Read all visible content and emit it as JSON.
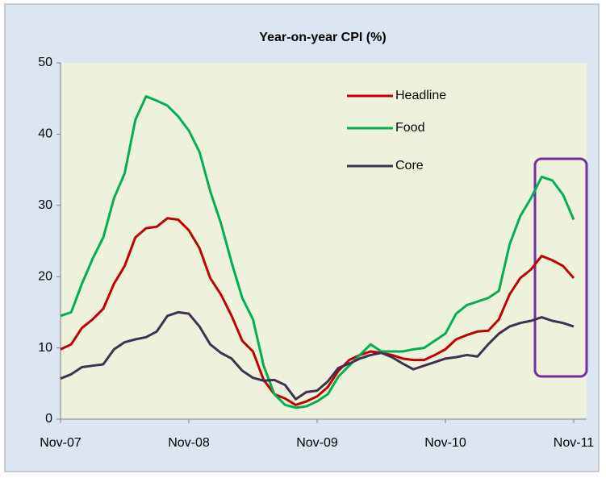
{
  "chart_data": {
    "type": "line",
    "title": "Year-on-year CPI (%)",
    "categories": [
      "Nov-07",
      null,
      null,
      null,
      null,
      null,
      null,
      null,
      null,
      null,
      null,
      null,
      "Nov-08",
      null,
      null,
      null,
      null,
      null,
      null,
      null,
      null,
      null,
      null,
      null,
      "Nov-09",
      null,
      null,
      null,
      null,
      null,
      null,
      null,
      null,
      null,
      null,
      null,
      "Nov-10",
      null,
      null,
      null,
      null,
      null,
      null,
      null,
      null,
      null,
      null,
      null,
      "Nov-11"
    ],
    "series": [
      {
        "name": "Headline",
        "color": "#c00000",
        "values": [
          9.8,
          10.5,
          12.8,
          14,
          15.5,
          19,
          21.5,
          25.5,
          26.8,
          27,
          28.2,
          28,
          26.5,
          24,
          19.8,
          17.5,
          14.5,
          11,
          9.5,
          5.5,
          3.5,
          2.9,
          2,
          2.5,
          3.2,
          4.5,
          6.8,
          8.3,
          9,
          9.5,
          9.3,
          9,
          8.5,
          8.3,
          8.3,
          9,
          9.8,
          11.2,
          11.8,
          12.3,
          12.4,
          14,
          17.5,
          19.8,
          21,
          22.9,
          22.3,
          21.5,
          19.8
        ]
      },
      {
        "name": "Food",
        "color": "#00b050",
        "values": [
          14.5,
          15,
          19,
          22.5,
          25.5,
          31,
          34.5,
          42,
          45.3,
          44.7,
          44,
          42.5,
          40.5,
          37.5,
          32,
          27.5,
          22,
          17,
          14,
          7.5,
          3.5,
          2,
          1.6,
          1.8,
          2.5,
          3.5,
          6,
          7.5,
          9,
          10.5,
          9.5,
          9.5,
          9.5,
          9.8,
          10,
          11,
          12,
          14.8,
          16,
          16.5,
          17,
          18,
          24.5,
          28.5,
          31,
          34,
          33.5,
          31.5,
          28
        ]
      },
      {
        "name": "Core",
        "color": "#403152",
        "values": [
          5.7,
          6.3,
          7.3,
          7.5,
          7.7,
          9.8,
          10.8,
          11.2,
          11.5,
          12.3,
          14.5,
          15,
          14.8,
          13,
          10.5,
          9.3,
          8.5,
          6.8,
          5.8,
          5.4,
          5.5,
          4.8,
          2.8,
          3.8,
          4,
          5.3,
          7.2,
          7.8,
          8.5,
          9,
          9.3,
          8.7,
          7.8,
          7,
          7.5,
          8,
          8.5,
          8.7,
          9,
          8.8,
          10.5,
          12,
          13,
          13.5,
          13.8,
          14.3,
          13.8,
          13.5,
          13
        ]
      }
    ],
    "ylim": [
      0,
      50
    ],
    "yticks": [
      0,
      10,
      20,
      30,
      40,
      50
    ]
  }
}
